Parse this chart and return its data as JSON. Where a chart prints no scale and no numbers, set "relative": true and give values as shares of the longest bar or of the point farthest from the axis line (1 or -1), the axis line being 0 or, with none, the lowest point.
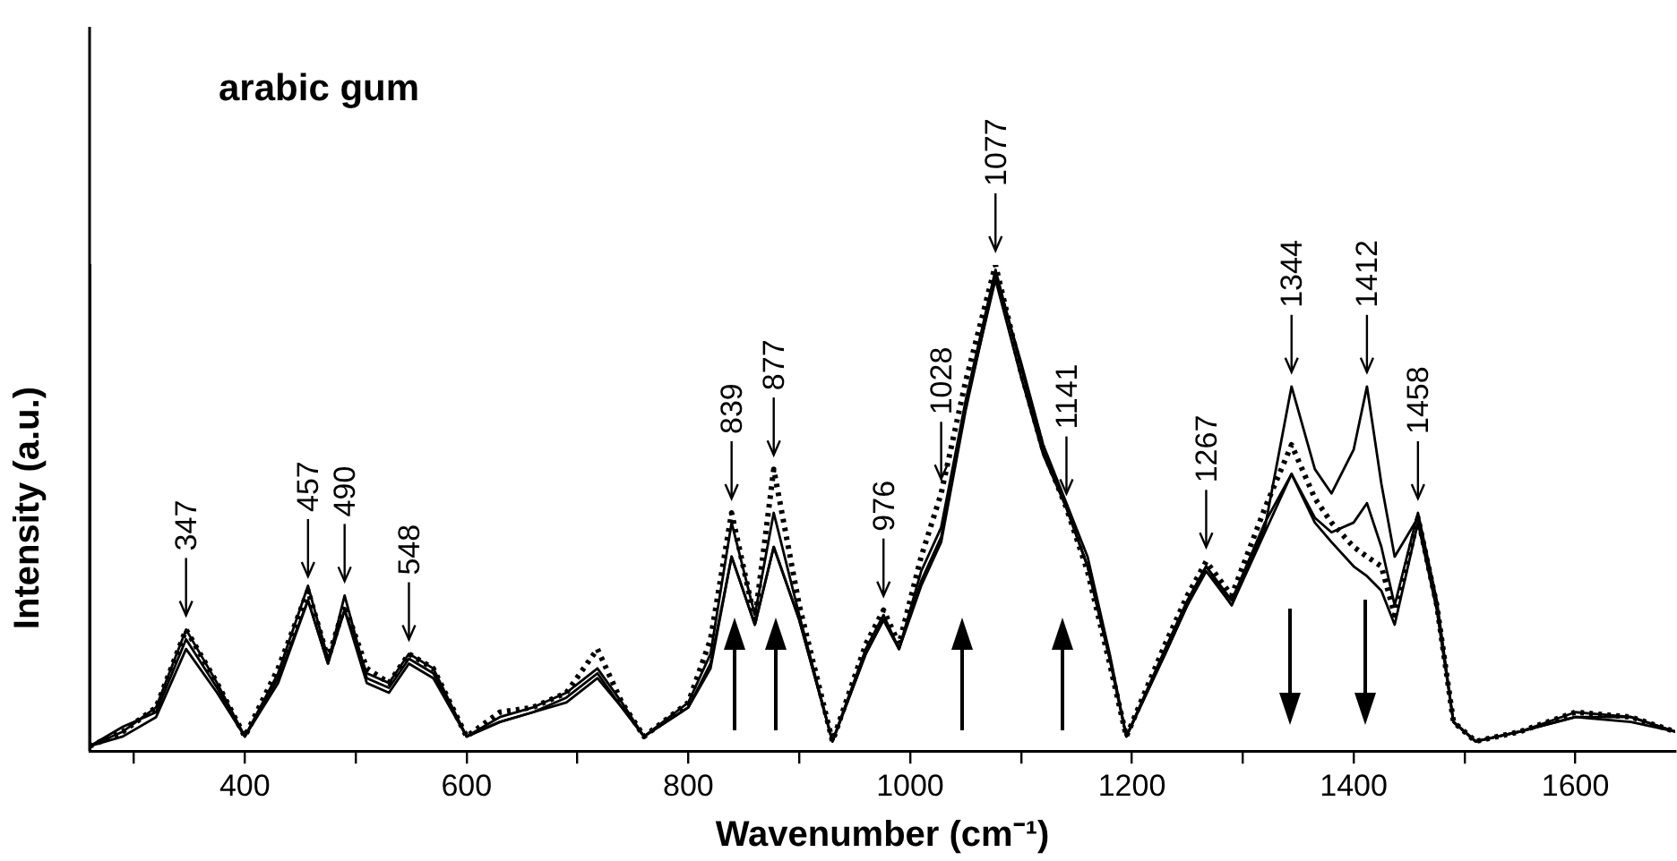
{
  "chart_data": {
    "type": "line",
    "title": "arabic gum",
    "xlabel": "Wavenumber (cm⁻¹)",
    "ylabel": "Intensity (a.u.)",
    "relative": true,
    "tick_labels": "x",
    "grid": false,
    "legend": false,
    "marker": "none",
    "x": [
      260,
      290,
      320,
      347,
      375,
      400,
      430,
      457,
      475,
      490,
      510,
      530,
      548,
      570,
      600,
      630,
      660,
      690,
      718,
      740,
      760,
      800,
      820,
      839,
      860,
      877,
      900,
      930,
      960,
      976,
      990,
      1010,
      1028,
      1050,
      1077,
      1100,
      1120,
      1141,
      1160,
      1180,
      1195,
      1230,
      1250,
      1267,
      1290,
      1320,
      1344,
      1365,
      1380,
      1400,
      1412,
      1425,
      1437,
      1458,
      1475,
      1490,
      1510,
      1550,
      1600,
      1650,
      1690
    ],
    "xlim": [
      260,
      1690
    ],
    "xticks": [
      {
        "value": 300,
        "label": null
      },
      400,
      {
        "value": 500,
        "label": null
      },
      600,
      {
        "value": 700,
        "label": null
      },
      800,
      {
        "value": 900,
        "label": null
      },
      1000,
      {
        "value": 1100,
        "label": null
      },
      1200,
      {
        "value": 1300,
        "label": null
      },
      1400,
      {
        "value": 1500,
        "label": null
      },
      1600
    ],
    "series": [
      {
        "color": "#000000",
        "line_style": "dotted",
        "values": [
          0.01,
          0.04,
          0.09,
          0.25,
          0.14,
          0.03,
          0.17,
          0.33,
          0.19,
          0.3,
          0.17,
          0.14,
          0.2,
          0.17,
          0.03,
          0.08,
          0.09,
          0.12,
          0.21,
          0.1,
          0.03,
          0.1,
          0.23,
          0.49,
          0.27,
          0.58,
          0.3,
          0.02,
          0.22,
          0.29,
          0.22,
          0.4,
          0.53,
          0.76,
          1,
          0.78,
          0.62,
          0.5,
          0.37,
          0.18,
          0.03,
          0.22,
          0.32,
          0.39,
          0.32,
          0.5,
          0.63,
          0.52,
          0.47,
          0.42,
          0.4,
          0.38,
          0.28,
          0.48,
          0.3,
          0.06,
          0.02,
          0.04,
          0.08,
          0.07,
          0.04
        ]
      },
      {
        "color": "#000000",
        "line_style": "solid",
        "values": [
          0.01,
          0.05,
          0.08,
          0.23,
          0.13,
          0.03,
          0.15,
          0.31,
          0.18,
          0.32,
          0.15,
          0.13,
          0.19,
          0.16,
          0.03,
          0.06,
          0.08,
          0.11,
          0.16,
          0.09,
          0.03,
          0.09,
          0.18,
          0.4,
          0.26,
          0.42,
          0.27,
          0.02,
          0.2,
          0.27,
          0.21,
          0.34,
          0.43,
          0.7,
          0.98,
          0.8,
          0.63,
          0.51,
          0.4,
          0.2,
          0.03,
          0.2,
          0.3,
          0.38,
          0.3,
          0.46,
          0.75,
          0.58,
          0.53,
          0.62,
          0.75,
          0.55,
          0.4,
          0.48,
          0.3,
          0.06,
          0.02,
          0.04,
          0.07,
          0.07,
          0.04
        ]
      },
      {
        "color": "#000000",
        "line_style": "solid",
        "values": [
          0.01,
          0.04,
          0.09,
          0.25,
          0.14,
          0.03,
          0.16,
          0.34,
          0.19,
          0.29,
          0.16,
          0.14,
          0.2,
          0.17,
          0.03,
          0.07,
          0.09,
          0.12,
          0.17,
          0.1,
          0.03,
          0.1,
          0.2,
          0.47,
          0.28,
          0.49,
          0.28,
          0.02,
          0.21,
          0.28,
          0.21,
          0.37,
          0.46,
          0.72,
          0.99,
          0.79,
          0.62,
          0.5,
          0.38,
          0.19,
          0.03,
          0.21,
          0.31,
          0.38,
          0.31,
          0.47,
          0.57,
          0.48,
          0.45,
          0.47,
          0.51,
          0.42,
          0.3,
          0.49,
          0.31,
          0.06,
          0.02,
          0.04,
          0.08,
          0.07,
          0.04
        ]
      },
      {
        "color": "#000000",
        "line_style": "solid",
        "values": [
          0.01,
          0.03,
          0.07,
          0.21,
          0.12,
          0.03,
          0.14,
          0.31,
          0.18,
          0.29,
          0.14,
          0.12,
          0.18,
          0.15,
          0.03,
          0.06,
          0.08,
          0.1,
          0.15,
          0.09,
          0.03,
          0.09,
          0.17,
          0.4,
          0.26,
          0.42,
          0.27,
          0.02,
          0.2,
          0.27,
          0.21,
          0.35,
          0.44,
          0.71,
          0.97,
          0.77,
          0.61,
          0.5,
          0.38,
          0.19,
          0.03,
          0.2,
          0.3,
          0.37,
          0.3,
          0.45,
          0.57,
          0.47,
          0.43,
          0.38,
          0.36,
          0.33,
          0.26,
          0.47,
          0.29,
          0.06,
          0.02,
          0.04,
          0.07,
          0.06,
          0.04
        ]
      }
    ],
    "annotations": [
      {
        "text": "347",
        "x": 347,
        "y": 0.25
      },
      {
        "text": "457",
        "x": 457,
        "y": 0.33
      },
      {
        "text": "490",
        "x": 490,
        "y": 0.32
      },
      {
        "text": "548",
        "x": 548,
        "y": 0.2
      },
      {
        "text": "839",
        "x": 839,
        "y": 0.49
      },
      {
        "text": "877",
        "x": 877,
        "y": 0.58
      },
      {
        "text": "976",
        "x": 976,
        "y": 0.29
      },
      {
        "text": "1028",
        "x": 1028,
        "y": 0.53
      },
      {
        "text": "1077",
        "x": 1077,
        "y": 1
      },
      {
        "text": "1141",
        "x": 1141,
        "y": 0.5
      },
      {
        "text": "1267",
        "x": 1267,
        "y": 0.39
      },
      {
        "text": "1344",
        "x": 1344,
        "y": 0.75
      },
      {
        "text": "1412",
        "x": 1412,
        "y": 0.75
      },
      {
        "text": "1458",
        "x": 1458,
        "y": 0.49
      }
    ]
  }
}
